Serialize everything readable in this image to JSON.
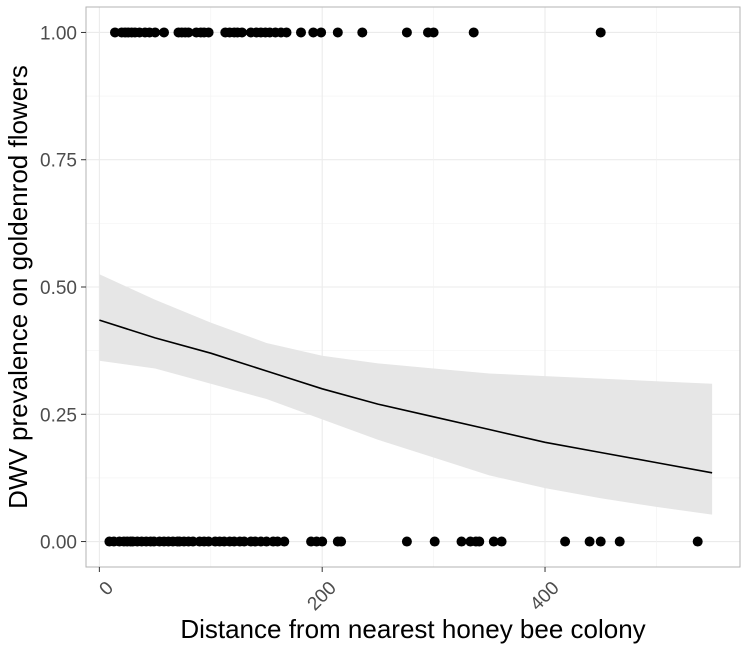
{
  "chart_data": {
    "type": "scatter",
    "title": "",
    "xlabel": "Distance from nearest honey bee colony",
    "ylabel": "DWV prevalence on goldenrod flowers",
    "xlim": [
      -12,
      575
    ],
    "ylim": [
      -0.05,
      1.05
    ],
    "x_ticks": [
      0,
      200,
      400
    ],
    "x_tick_labels": [
      "0",
      "200",
      "400"
    ],
    "y_ticks": [
      0,
      0.25,
      0.5,
      0.75,
      1
    ],
    "y_tick_labels": [
      "0.00",
      "0.25",
      "0.50",
      "0.75",
      "1.00"
    ],
    "grid": true,
    "colors": {
      "points": "#000000",
      "line": "#000000",
      "band": "#e6e6e6",
      "grid": "#ebebeb",
      "panel_border": "#b3b3b3"
    },
    "points": {
      "y1_x": [
        14,
        20,
        23,
        26,
        29,
        32,
        36,
        41,
        45,
        50,
        58,
        71,
        74,
        77,
        80,
        87,
        91,
        94,
        98,
        113,
        117,
        121,
        124,
        128,
        136,
        141,
        145,
        149,
        153,
        158,
        163,
        168,
        181,
        192,
        199,
        214,
        236,
        276,
        295,
        300,
        336,
        450
      ],
      "y0_x": [
        9,
        13,
        18,
        22,
        25,
        28,
        30,
        34,
        38,
        42,
        46,
        49,
        54,
        58,
        62,
        66,
        70,
        72,
        76,
        80,
        84,
        90,
        94,
        98,
        104,
        108,
        112,
        117,
        121,
        126,
        130,
        136,
        140,
        145,
        150,
        156,
        160,
        166,
        190,
        195,
        200,
        214,
        217,
        276,
        301,
        325,
        333,
        338,
        341,
        354,
        361,
        418,
        440,
        450,
        467,
        537
      ]
    },
    "fit": {
      "x": [
        0,
        50,
        100,
        150,
        200,
        250,
        300,
        350,
        400,
        450,
        500,
        550
      ],
      "y": [
        0.435,
        0.4,
        0.37,
        0.335,
        0.3,
        0.27,
        0.245,
        0.22,
        0.195,
        0.175,
        0.155,
        0.135
      ],
      "lower": [
        0.355,
        0.34,
        0.31,
        0.28,
        0.24,
        0.2,
        0.165,
        0.13,
        0.105,
        0.085,
        0.068,
        0.053
      ],
      "upper": [
        0.525,
        0.475,
        0.43,
        0.39,
        0.365,
        0.35,
        0.34,
        0.33,
        0.325,
        0.32,
        0.315,
        0.31
      ]
    }
  }
}
